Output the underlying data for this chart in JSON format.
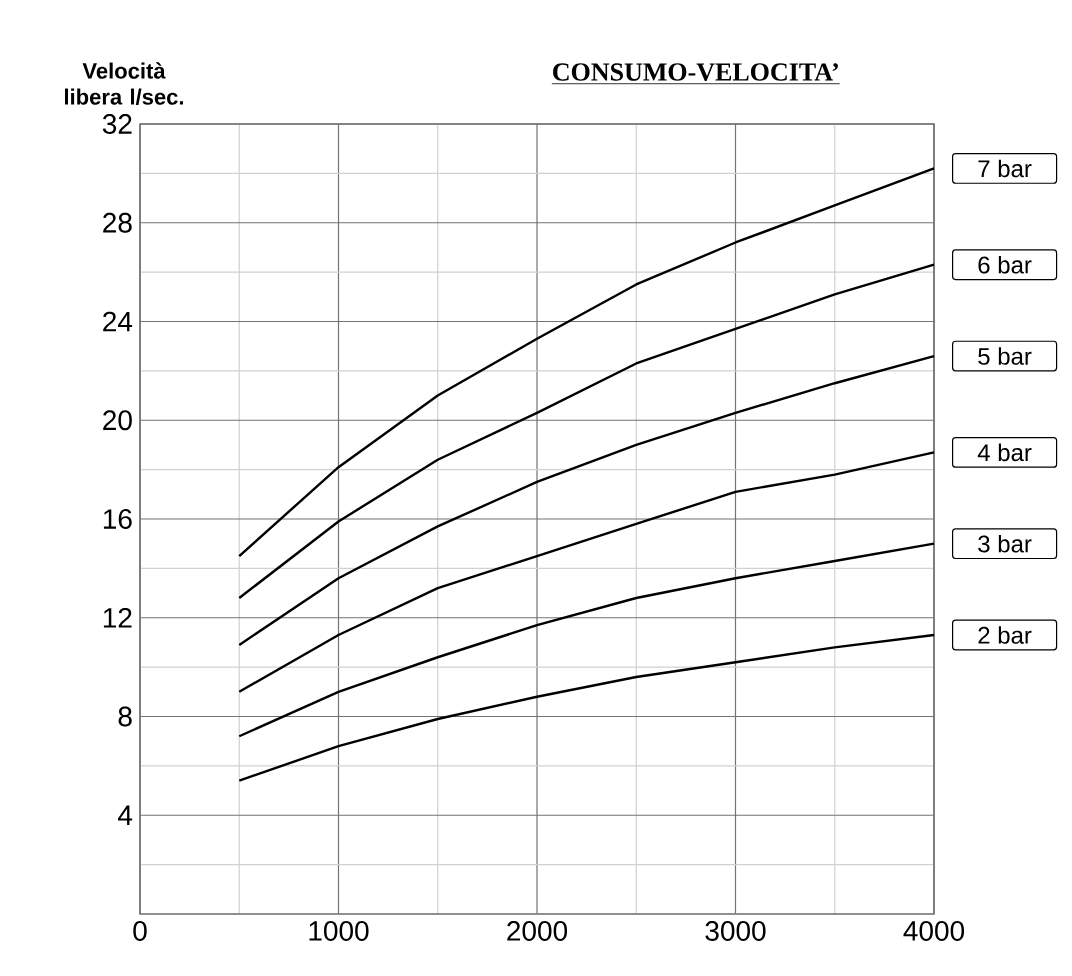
{
  "chart_data": {
    "type": "line",
    "title": "CONSUMO-VELOCITA’",
    "ylabel": "Velocità libera l/sec.",
    "x": [
      500,
      1000,
      1500,
      2000,
      2500,
      3000,
      3500,
      4000
    ],
    "xlim": [
      0,
      4000
    ],
    "ylim": [
      0,
      32
    ],
    "xticks": [
      0,
      {
        "value": 500,
        "label": null
      },
      1000,
      {
        "value": 1500,
        "label": null
      },
      2000,
      {
        "value": 2500,
        "label": null
      },
      3000,
      {
        "value": 3500,
        "label": null
      },
      4000
    ],
    "yticks": [
      {
        "value": 0,
        "label": null
      },
      {
        "value": 2,
        "label": null
      },
      4,
      {
        "value": 6,
        "label": null
      },
      8,
      {
        "value": 10,
        "label": null
      },
      12,
      {
        "value": 14,
        "label": null
      },
      16,
      {
        "value": 18,
        "label": null
      },
      20,
      {
        "value": 22,
        "label": null
      },
      24,
      {
        "value": 26,
        "label": null
      },
      28,
      {
        "value": 30,
        "label": null
      },
      32
    ],
    "grid": true,
    "legend": "right",
    "marker": "none",
    "line_style": "solid",
    "series": [
      {
        "name": "2 bar",
        "color": "#000000",
        "values": [
          5.4,
          6.8,
          7.9,
          8.8,
          9.6,
          10.2,
          10.8,
          11.3
        ]
      },
      {
        "name": "3 bar",
        "color": "#000000",
        "values": [
          7.2,
          9.0,
          10.4,
          11.7,
          12.8,
          13.6,
          14.3,
          15.0
        ]
      },
      {
        "name": "4 bar",
        "color": "#000000",
        "values": [
          9.0,
          11.3,
          13.2,
          14.5,
          15.8,
          17.1,
          17.8,
          18.7
        ]
      },
      {
        "name": "5 bar",
        "color": "#000000",
        "values": [
          10.9,
          13.6,
          15.7,
          17.5,
          19.0,
          20.3,
          21.5,
          22.6
        ]
      },
      {
        "name": "6 bar",
        "color": "#000000",
        "values": [
          12.8,
          15.9,
          18.4,
          20.3,
          22.3,
          23.7,
          25.1,
          26.3
        ]
      },
      {
        "name": "7 bar",
        "color": "#000000",
        "values": [
          14.5,
          18.1,
          21.0,
          23.3,
          25.5,
          27.2,
          28.7,
          30.2
        ]
      }
    ]
  }
}
